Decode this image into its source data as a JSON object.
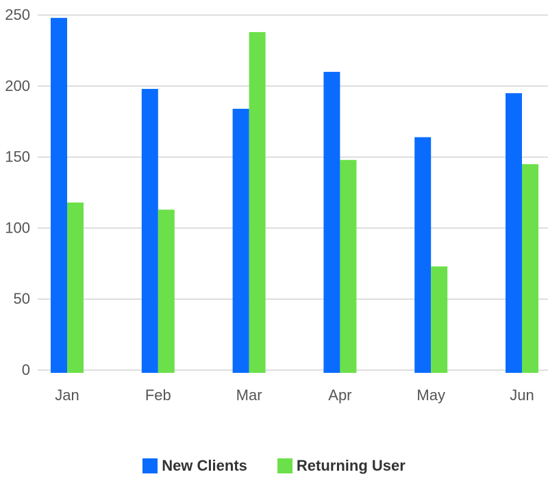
{
  "chart_data": {
    "type": "bar",
    "categories": [
      "Jan",
      "Feb",
      "Mar",
      "Apr",
      "May",
      "Jun"
    ],
    "series": [
      {
        "name": "New Clients",
        "color": "#0a6cff",
        "values": [
          248,
          198,
          184,
          210,
          164,
          195
        ]
      },
      {
        "name": "Returning User",
        "color": "#6ce04a",
        "values": [
          118,
          113,
          238,
          148,
          73,
          145
        ]
      }
    ],
    "ylim": [
      0,
      250
    ],
    "yticks": [
      "0",
      "50",
      "100",
      "150",
      "200",
      "250"
    ],
    "grid": true,
    "legend_position": "bottom-center"
  }
}
